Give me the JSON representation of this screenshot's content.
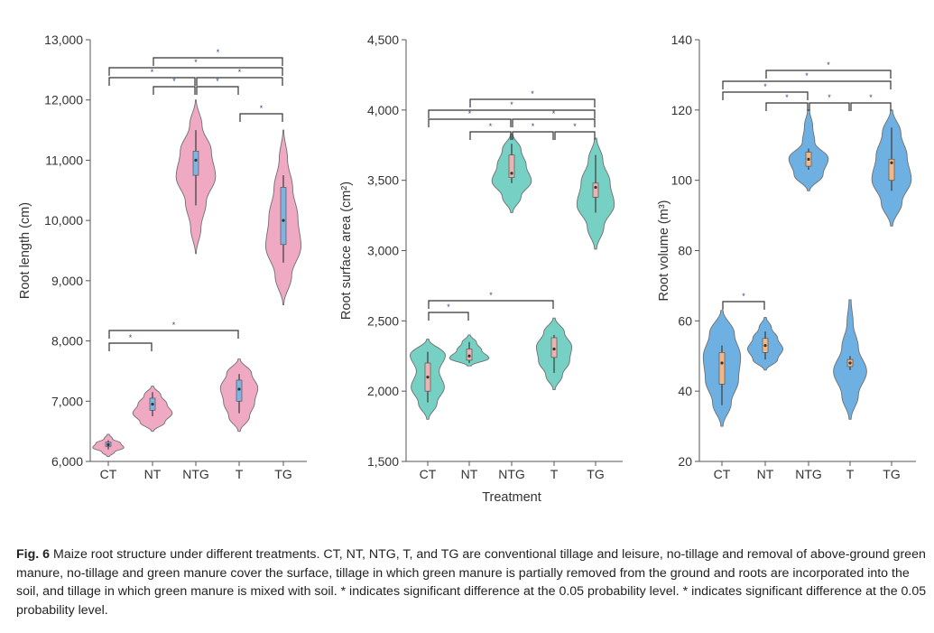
{
  "chart_data": [
    {
      "type": "violin",
      "ylabel": "Root length (cm)",
      "xlabel": "",
      "ylim": [
        6000,
        13000
      ],
      "yticks": [
        "6,000",
        "7,000",
        "8,000",
        "9,000",
        "10,000",
        "11,000",
        "12,000",
        "13,000"
      ],
      "ytick_values": [
        6000,
        7000,
        8000,
        9000,
        10000,
        11000,
        12000,
        13000
      ],
      "categories": [
        "CT",
        "NT",
        "NTG",
        "T",
        "TG"
      ],
      "fill": "#f0a9c2",
      "box_color": "#7fb3e0",
      "violins": [
        {
          "min": 6080,
          "max": 6450,
          "whisker": [
            6200,
            6350
          ],
          "q1": 6250,
          "median": 6280,
          "q3": 6320,
          "density": [
            0.05,
            0.3,
            0.75,
            0.6,
            0.2,
            0.05
          ]
        },
        {
          "min": 6500,
          "max": 7250,
          "whisker": [
            6750,
            7150
          ],
          "q1": 6850,
          "median": 6950,
          "q3": 7050,
          "density": [
            0.05,
            0.6,
            0.95,
            0.7,
            0.4,
            0.05
          ]
        },
        {
          "min": 9450,
          "max": 12000,
          "whisker": [
            10250,
            11500
          ],
          "q1": 10750,
          "median": 11000,
          "q3": 11150,
          "density": [
            0.02,
            0.25,
            0.5,
            0.95,
            0.75,
            0.3,
            0.02
          ]
        },
        {
          "min": 6500,
          "max": 7700,
          "whisker": [
            6800,
            7450
          ],
          "q1": 7000,
          "median": 7200,
          "q3": 7350,
          "density": [
            0.05,
            0.5,
            0.75,
            0.9,
            0.6,
            0.05
          ]
        },
        {
          "min": 8600,
          "max": 11500,
          "whisker": [
            9300,
            10750
          ],
          "q1": 9600,
          "median": 10000,
          "q3": 10550,
          "density": [
            0.02,
            0.4,
            0.85,
            0.7,
            0.45,
            0.2,
            0.02
          ]
        }
      ],
      "significance": [
        [
          "NT",
          "TG"
        ],
        [
          "CT",
          "TG"
        ],
        [
          "CT",
          "NTG"
        ],
        [
          "NTG",
          "TG"
        ],
        [
          "NT",
          "NTG"
        ],
        [
          "NTG",
          "T"
        ],
        [
          "T",
          "TG"
        ],
        [
          "CT",
          "T"
        ],
        [
          "CT",
          "NT"
        ]
      ],
      "sig_label": "*"
    },
    {
      "type": "violin",
      "ylabel": "Root surface area (cm²)",
      "xlabel": "Treatment",
      "ylim": [
        1500,
        4500
      ],
      "yticks": [
        "1,500",
        "2,000",
        "2,500",
        "3,000",
        "3,500",
        "4,000",
        "4,500"
      ],
      "ytick_values": [
        1500,
        2000,
        2500,
        3000,
        3500,
        4000,
        4500
      ],
      "categories": [
        "CT",
        "NT",
        "NTG",
        "T",
        "TG"
      ],
      "fill": "#76d0c3",
      "box_color": "#e8b3b1",
      "violins": [
        {
          "min": 1800,
          "max": 2370,
          "whisker": [
            1920,
            2280
          ],
          "q1": 2000,
          "median": 2100,
          "q3": 2200,
          "density": [
            0.05,
            0.45,
            0.8,
            0.55,
            0.85,
            0.05
          ]
        },
        {
          "min": 2180,
          "max": 2400,
          "whisker": [
            2200,
            2350
          ],
          "q1": 2220,
          "median": 2250,
          "q3": 2300,
          "density": [
            0.1,
            0.95,
            0.6,
            0.35,
            0.05
          ]
        },
        {
          "min": 3270,
          "max": 3830,
          "whisker": [
            3480,
            3760
          ],
          "q1": 3520,
          "median": 3550,
          "q3": 3680,
          "density": [
            0.05,
            0.45,
            0.95,
            0.7,
            0.45,
            0.05
          ]
        },
        {
          "min": 2010,
          "max": 2520,
          "whisker": [
            2130,
            2400
          ],
          "q1": 2240,
          "median": 2300,
          "q3": 2380,
          "density": [
            0.05,
            0.4,
            0.75,
            0.85,
            0.5,
            0.05
          ]
        },
        {
          "min": 3010,
          "max": 3800,
          "whisker": [
            3270,
            3680
          ],
          "q1": 3380,
          "median": 3450,
          "q3": 3480,
          "density": [
            0.05,
            0.4,
            0.9,
            0.7,
            0.35,
            0.05
          ]
        }
      ],
      "significance": [
        [
          "NT",
          "TG"
        ],
        [
          "CT",
          "TG"
        ],
        [
          "CT",
          "NTG"
        ],
        [
          "NTG",
          "TG"
        ],
        [
          "NT",
          "NTG"
        ],
        [
          "NTG",
          "T"
        ],
        [
          "T",
          "TG"
        ],
        [
          "CT",
          "T"
        ],
        [
          "CT",
          "NT"
        ]
      ],
      "sig_label": "*"
    },
    {
      "type": "violin",
      "ylabel": "Root volume (m³)",
      "xlabel": "",
      "ylim": [
        20,
        140
      ],
      "yticks": [
        "20",
        "40",
        "60",
        "80",
        "100",
        "120",
        "140"
      ],
      "ytick_values": [
        20,
        40,
        60,
        80,
        100,
        120,
        140
      ],
      "categories": [
        "CT",
        "NT",
        "NTG",
        "T",
        "TG"
      ],
      "fill": "#6eb0e2",
      "box_color": "#f2b787",
      "violins": [
        {
          "min": 30,
          "max": 63,
          "whisker": [
            36,
            53
          ],
          "q1": 42,
          "median": 48,
          "q3": 51,
          "density": [
            0.05,
            0.45,
            0.8,
            0.9,
            0.6,
            0.05
          ]
        },
        {
          "min": 46,
          "max": 61,
          "whisker": [
            49,
            57
          ],
          "q1": 51,
          "median": 53,
          "q3": 55,
          "density": [
            0.05,
            0.6,
            0.85,
            0.6,
            0.3,
            0.05
          ]
        },
        {
          "min": 97,
          "max": 120,
          "whisker": [
            103,
            109
          ],
          "q1": 104,
          "median": 106,
          "q3": 108,
          "density": [
            0.05,
            0.7,
            0.95,
            0.3,
            0.2,
            0.05
          ]
        },
        {
          "min": 32,
          "max": 66,
          "whisker": [
            46,
            50
          ],
          "q1": 47,
          "median": 48,
          "q3": 49,
          "density": [
            0.05,
            0.4,
            0.8,
            0.4,
            0.15,
            0.05
          ]
        },
        {
          "min": 87,
          "max": 120,
          "whisker": [
            97,
            115
          ],
          "q1": 100,
          "median": 105,
          "q3": 106,
          "density": [
            0.05,
            0.5,
            0.95,
            0.75,
            0.45,
            0.05
          ]
        }
      ],
      "significance": [
        [
          "NT",
          "TG"
        ],
        [
          "CT",
          "TG"
        ],
        [
          "CT",
          "NTG"
        ],
        [
          "NT",
          "NTG"
        ],
        [
          "NTG",
          "T"
        ],
        [
          "T",
          "TG"
        ],
        [
          "CT",
          "NT"
        ]
      ],
      "sig_label": "*"
    }
  ],
  "caption": {
    "label": "Fig. 6",
    "text": "Maize root structure under different treatments.  CT, NT, NTG, T, and TG are conventional tillage and leisure, no-tillage and removal of above-ground green manure, no-tillage and green manure cover the surface, tillage in which green manure is partially removed from the ground and roots are incorporated into the soil, and tillage in which green manure is mixed with soil.  * indicates significant difference at the 0.05 probability level.  * indicates significant difference at the 0.05 probability level."
  }
}
